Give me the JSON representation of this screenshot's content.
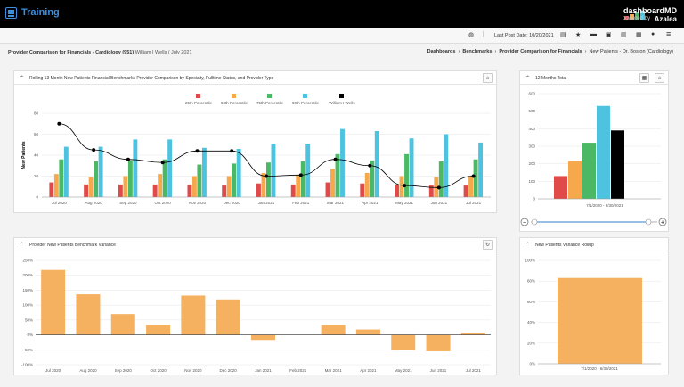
{
  "app": {
    "title": "Training",
    "logo_line1": "dashboardMD",
    "logo_line2": "powered by",
    "logo_line3": "Azalea"
  },
  "toolbar": {
    "last_post_date_label": "Last Post Date:",
    "last_post_date": "10/20/2021"
  },
  "page": {
    "title": "Provider Comparison for Financials - Cardiology (951)",
    "subtitle": "William I Wells / July 2021"
  },
  "breadcrumb": [
    "Dashboards",
    "Benchmarks",
    "Provider Comparison for Financials",
    "New Patients - Dr. Boston (Cardiology)"
  ],
  "panels": {
    "main": {
      "title": "Rolling 13 Month New Patients Financial Benchmarks Provider Comparison by Specialty, Fulltime Status, and Provider Type"
    },
    "total": {
      "title": "12 Months Total"
    },
    "variance": {
      "title": "Provider New Patients Benchmark Variance"
    },
    "rollup": {
      "title": "New Patients Variance Rollup"
    }
  },
  "colors": {
    "p25": "#e04a4a",
    "p50": "#f5a94c",
    "p75": "#4ab865",
    "p90": "#4dc3e0",
    "provider": "#000000",
    "bar": "#f5b060"
  },
  "chart_data": [
    {
      "type": "bar",
      "title": "",
      "categories": [
        "Jul 2020",
        "Aug 2020",
        "Sep 2020",
        "Oct 2020",
        "Nov 2020",
        "Dec 2020",
        "Jan 2021",
        "Feb 2021",
        "Mar 2021",
        "Apr 2021",
        "May 2021",
        "Jun 2021",
        "Jul 2021"
      ],
      "ylabel": "New Patients",
      "ylim": [
        0,
        80
      ],
      "yticks": [
        "0",
        "20",
        "40",
        "60",
        "80"
      ],
      "series": [
        {
          "name": "25th Percentile",
          "values": [
            14,
            12,
            12,
            12,
            12,
            11,
            13,
            12,
            14,
            13,
            12,
            11,
            11
          ]
        },
        {
          "name": "50th Percentile",
          "values": [
            22,
            19,
            20,
            22,
            20,
            20,
            23,
            21,
            27,
            23,
            20,
            19,
            20
          ]
        },
        {
          "name": "75th Percentile",
          "values": [
            36,
            34,
            35,
            36,
            31,
            32,
            33,
            34,
            41,
            35,
            41,
            34,
            36
          ]
        },
        {
          "name": "90th Percentile",
          "values": [
            48,
            48,
            55,
            55,
            47,
            46,
            51,
            51,
            65,
            63,
            56,
            60,
            52
          ]
        },
        {
          "name": "William I Wells",
          "type": "line",
          "values": [
            70,
            45,
            36,
            33,
            44,
            44,
            20,
            21,
            36,
            30,
            11,
            9,
            20
          ]
        }
      ]
    },
    {
      "type": "bar",
      "title": "",
      "categories": [
        "25th Percentile",
        "50th Percentile",
        "75th Percentile",
        "90th Percentile",
        "William I Wells"
      ],
      "values": [
        130,
        215,
        320,
        530,
        390
      ],
      "xlabel": "7/1/2020 - 6/30/2021",
      "ylim": [
        0,
        600
      ],
      "yticks": [
        "0",
        "100",
        "200",
        "300",
        "400",
        "500",
        "600"
      ]
    },
    {
      "type": "bar",
      "title": "",
      "categories": [
        "Jul 2020",
        "Aug 2020",
        "Sep 2020",
        "Oct 2020",
        "Nov 2020",
        "Dec 2020",
        "Jan 2021",
        "Feb 2021",
        "Mar 2021",
        "Apr 2021",
        "May 2021",
        "Jun 2021",
        "Jul 2021"
      ],
      "values": [
        218,
        136,
        70,
        33,
        132,
        119,
        -17,
        0,
        33,
        18,
        -51,
        -55,
        7
      ],
      "ylim": [
        -100,
        250
      ],
      "yticks": [
        "-100%",
        "-50%",
        "0%",
        "50%",
        "100%",
        "150%",
        "200%",
        "250%"
      ]
    },
    {
      "type": "bar",
      "title": "",
      "categories": [
        "7/1/2020 - 6/30/2021"
      ],
      "values": [
        83
      ],
      "ylim": [
        0,
        100
      ],
      "yticks": [
        "0%",
        "20%",
        "40%",
        "60%",
        "80%",
        "100%"
      ]
    }
  ]
}
